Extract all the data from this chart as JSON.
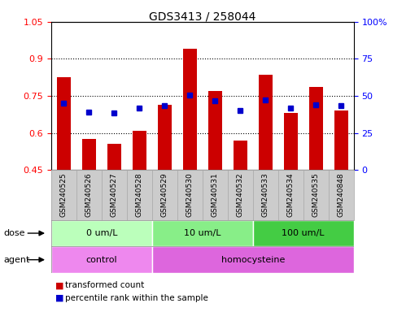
{
  "title": "GDS3413 / 258044",
  "samples": [
    "GSM240525",
    "GSM240526",
    "GSM240527",
    "GSM240528",
    "GSM240529",
    "GSM240530",
    "GSM240531",
    "GSM240532",
    "GSM240533",
    "GSM240534",
    "GSM240535",
    "GSM240848"
  ],
  "transformed_count": [
    0.825,
    0.575,
    0.555,
    0.61,
    0.715,
    0.94,
    0.77,
    0.57,
    0.835,
    0.68,
    0.785,
    0.69
  ],
  "percentile_rank": [
    0.72,
    0.685,
    0.68,
    0.7,
    0.71,
    0.755,
    0.73,
    0.69,
    0.735,
    0.7,
    0.715,
    0.71
  ],
  "bar_bottom": 0.45,
  "ylim": [
    0.45,
    1.05
  ],
  "yticks": [
    0.45,
    0.6,
    0.75,
    0.9,
    1.05
  ],
  "ytick_labels": [
    "0.45",
    "0.6",
    "0.75",
    "0.9",
    "1.05"
  ],
  "right_yticks": [
    0,
    25,
    50,
    75,
    100
  ],
  "right_ytick_labels": [
    "0",
    "25",
    "50",
    "75",
    "100%"
  ],
  "bar_color": "#cc0000",
  "dot_color": "#0000cc",
  "dose_groups": [
    {
      "label": "0 um/L",
      "start": 0,
      "end": 4,
      "color": "#bbffbb"
    },
    {
      "label": "10 um/L",
      "start": 4,
      "end": 8,
      "color": "#88ee88"
    },
    {
      "label": "100 um/L",
      "start": 8,
      "end": 12,
      "color": "#44cc44"
    }
  ],
  "agent_groups": [
    {
      "label": "control",
      "start": 0,
      "end": 4,
      "color": "#ee88ee"
    },
    {
      "label": "homocysteine",
      "start": 4,
      "end": 12,
      "color": "#dd66dd"
    }
  ],
  "dose_label": "dose",
  "agent_label": "agent",
  "legend_bar_label": "transformed count",
  "legend_dot_label": "percentile rank within the sample",
  "grid_yticks": [
    0.6,
    0.75,
    0.9
  ],
  "sample_box_color": "#cccccc",
  "sample_box_edge": "#aaaaaa"
}
